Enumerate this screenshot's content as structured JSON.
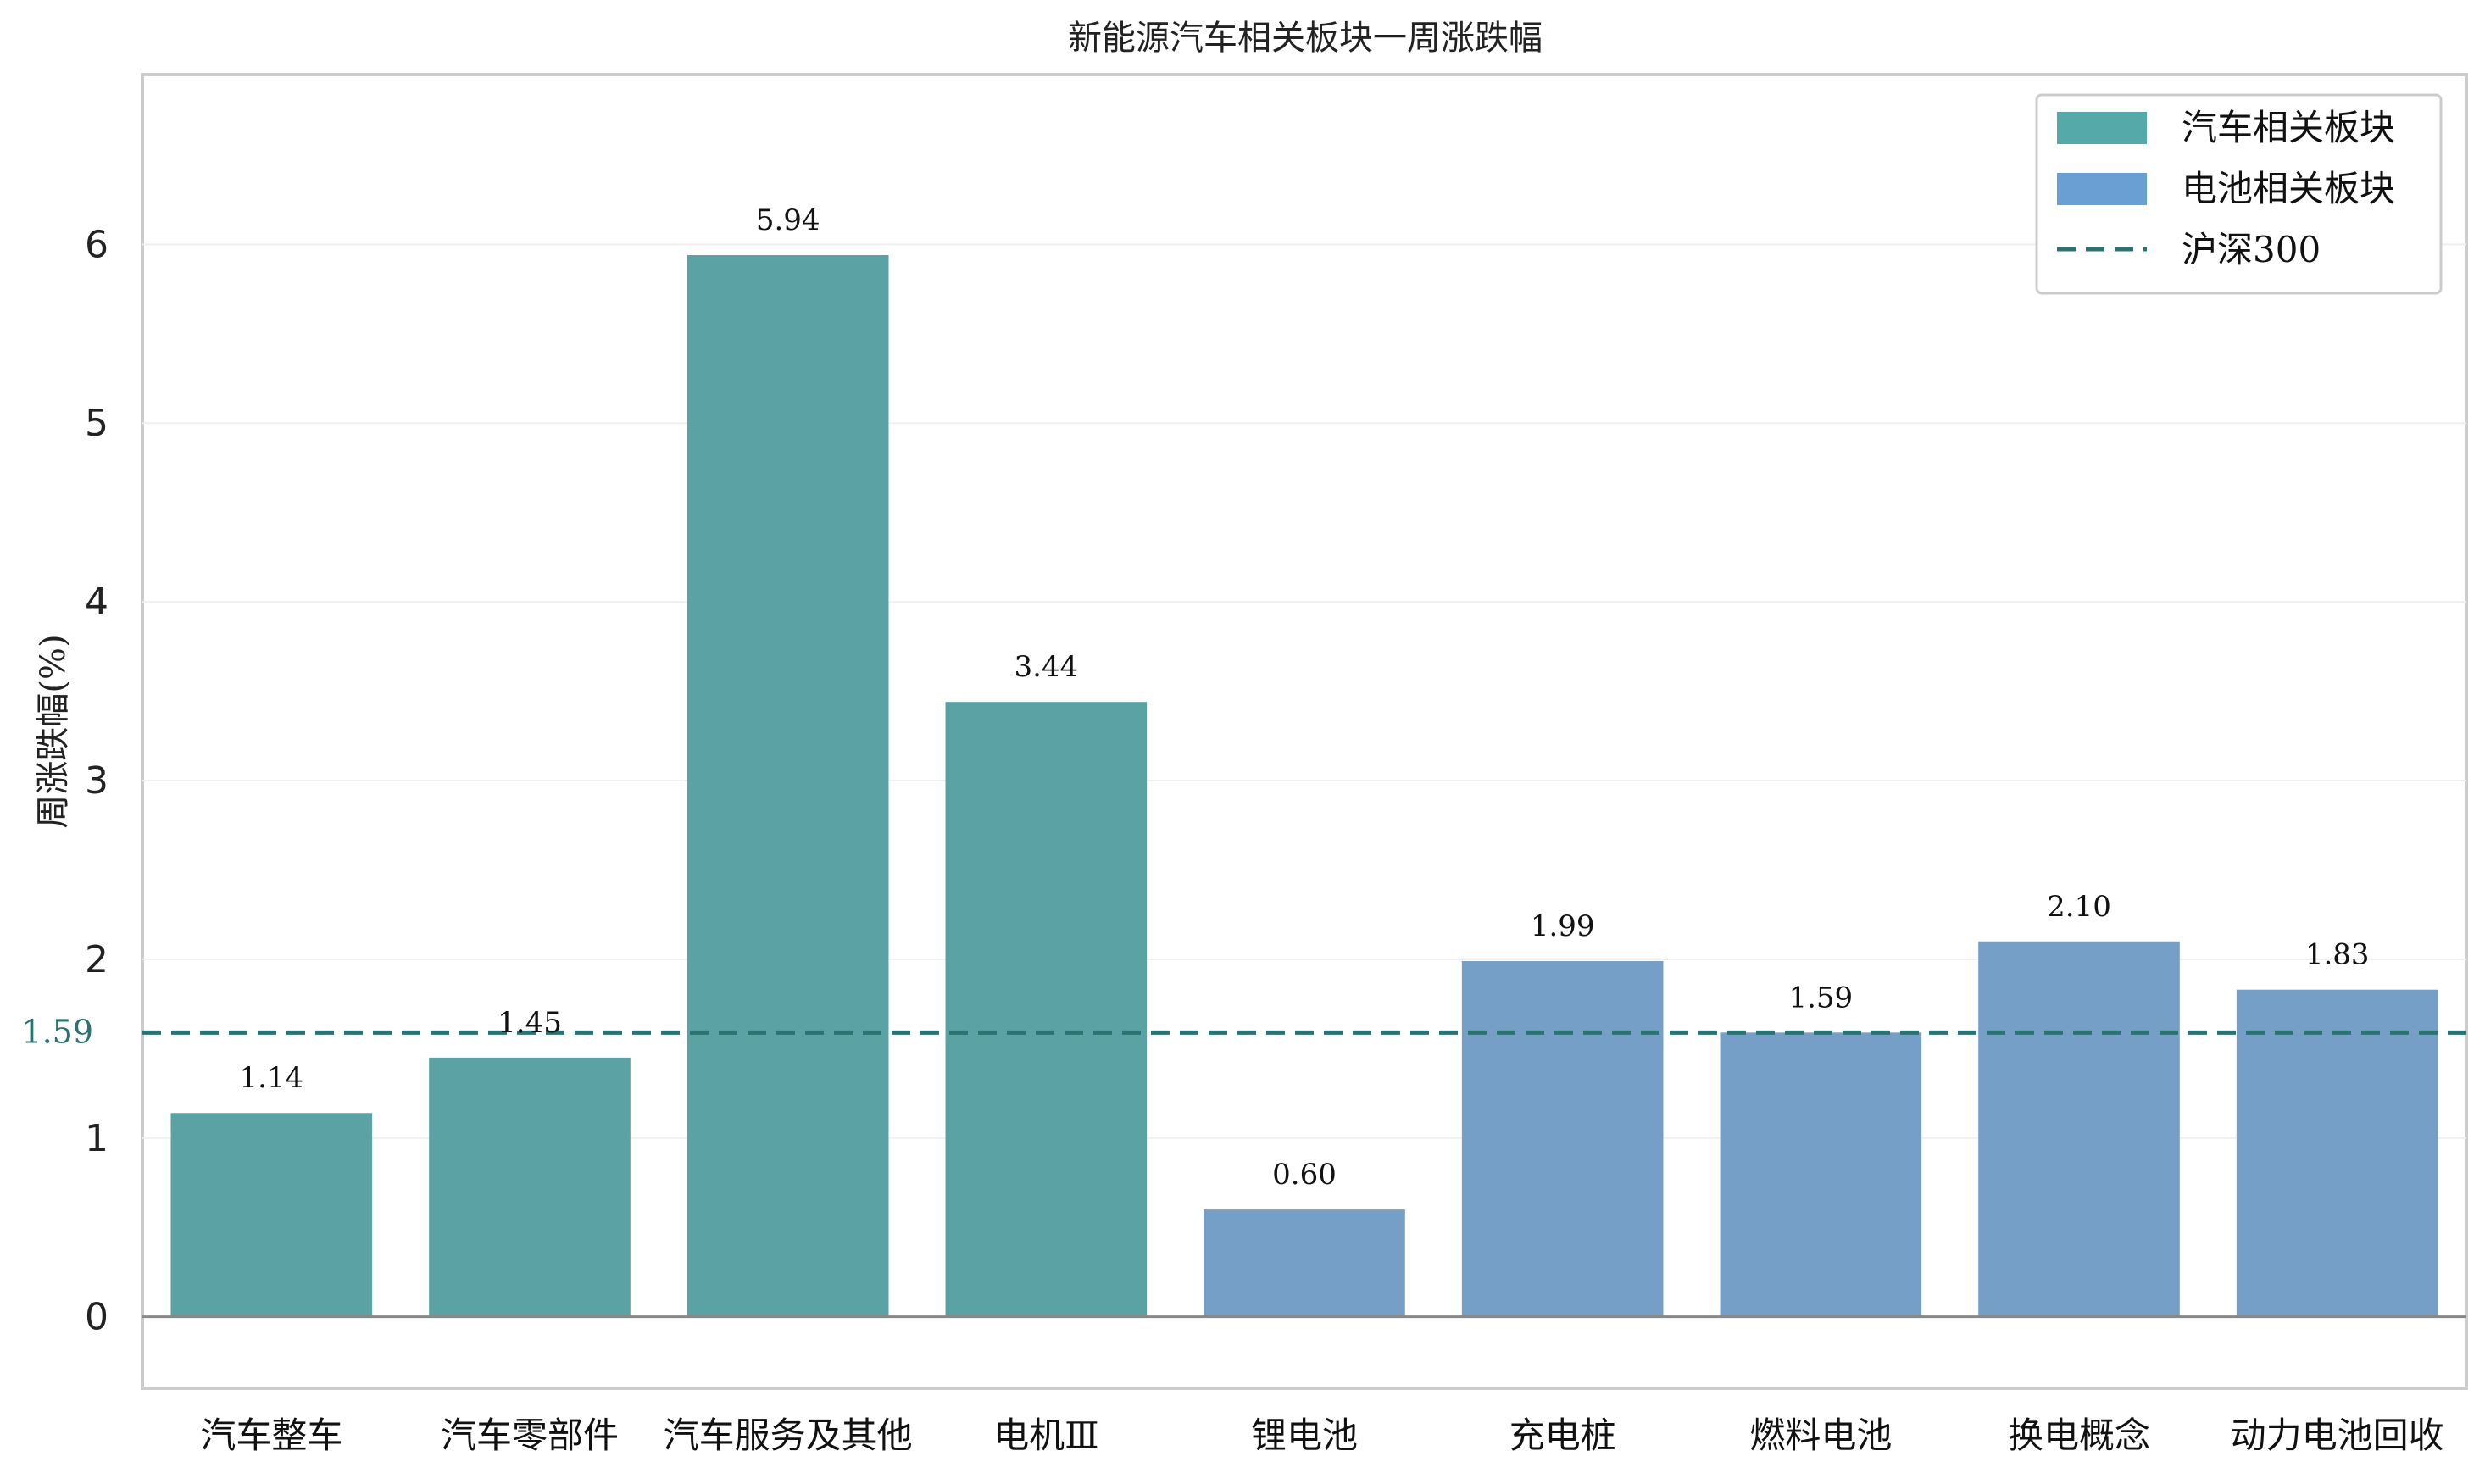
{
  "chart_data": {
    "type": "bar",
    "title": "新能源汽车相关板块一周涨跌幅",
    "ylabel": "周涨跌幅(%)",
    "xlabel": "",
    "ylim": [
      -0.4,
      6.95
    ],
    "yticks": [
      0,
      1,
      2,
      3,
      4,
      5,
      6
    ],
    "grid": "horizontal",
    "legend_position": "top-right",
    "categories": [
      "汽车整车",
      "汽车零部件",
      "汽车服务及其他",
      "电机Ⅲ",
      "锂电池",
      "充电桩",
      "燃料电池",
      "换电概念",
      "动力电池回收"
    ],
    "values": [
      1.14,
      1.45,
      5.94,
      3.44,
      0.6,
      1.99,
      1.59,
      2.1,
      1.83
    ],
    "value_labels": [
      "1.14",
      "1.45",
      "5.94",
      "3.44",
      "0.60",
      "1.99",
      "1.59",
      "2.10",
      "1.83"
    ],
    "groups": [
      "汽车相关板块",
      "汽车相关板块",
      "汽车相关板块",
      "汽车相关板块",
      "电池相关板块",
      "电池相关板块",
      "电池相关板块",
      "电池相关板块",
      "电池相关板块"
    ],
    "series": [
      {
        "name": "汽车相关板块",
        "color": "#5aa2a3"
      },
      {
        "name": "电池相关板块",
        "color": "#769fc8"
      }
    ],
    "reference_line": {
      "name": "沪深300",
      "value": 1.59,
      "label": "1.59",
      "color": "#2b7373",
      "style": "dashed"
    },
    "legend": [
      {
        "name": "汽车相关板块",
        "kind": "patch",
        "color": "#55aaa9"
      },
      {
        "name": "电池相关板块",
        "kind": "patch",
        "color": "#6a9fd4"
      },
      {
        "name": "沪深300",
        "kind": "dashed-line",
        "color": "#2b7373"
      }
    ]
  }
}
